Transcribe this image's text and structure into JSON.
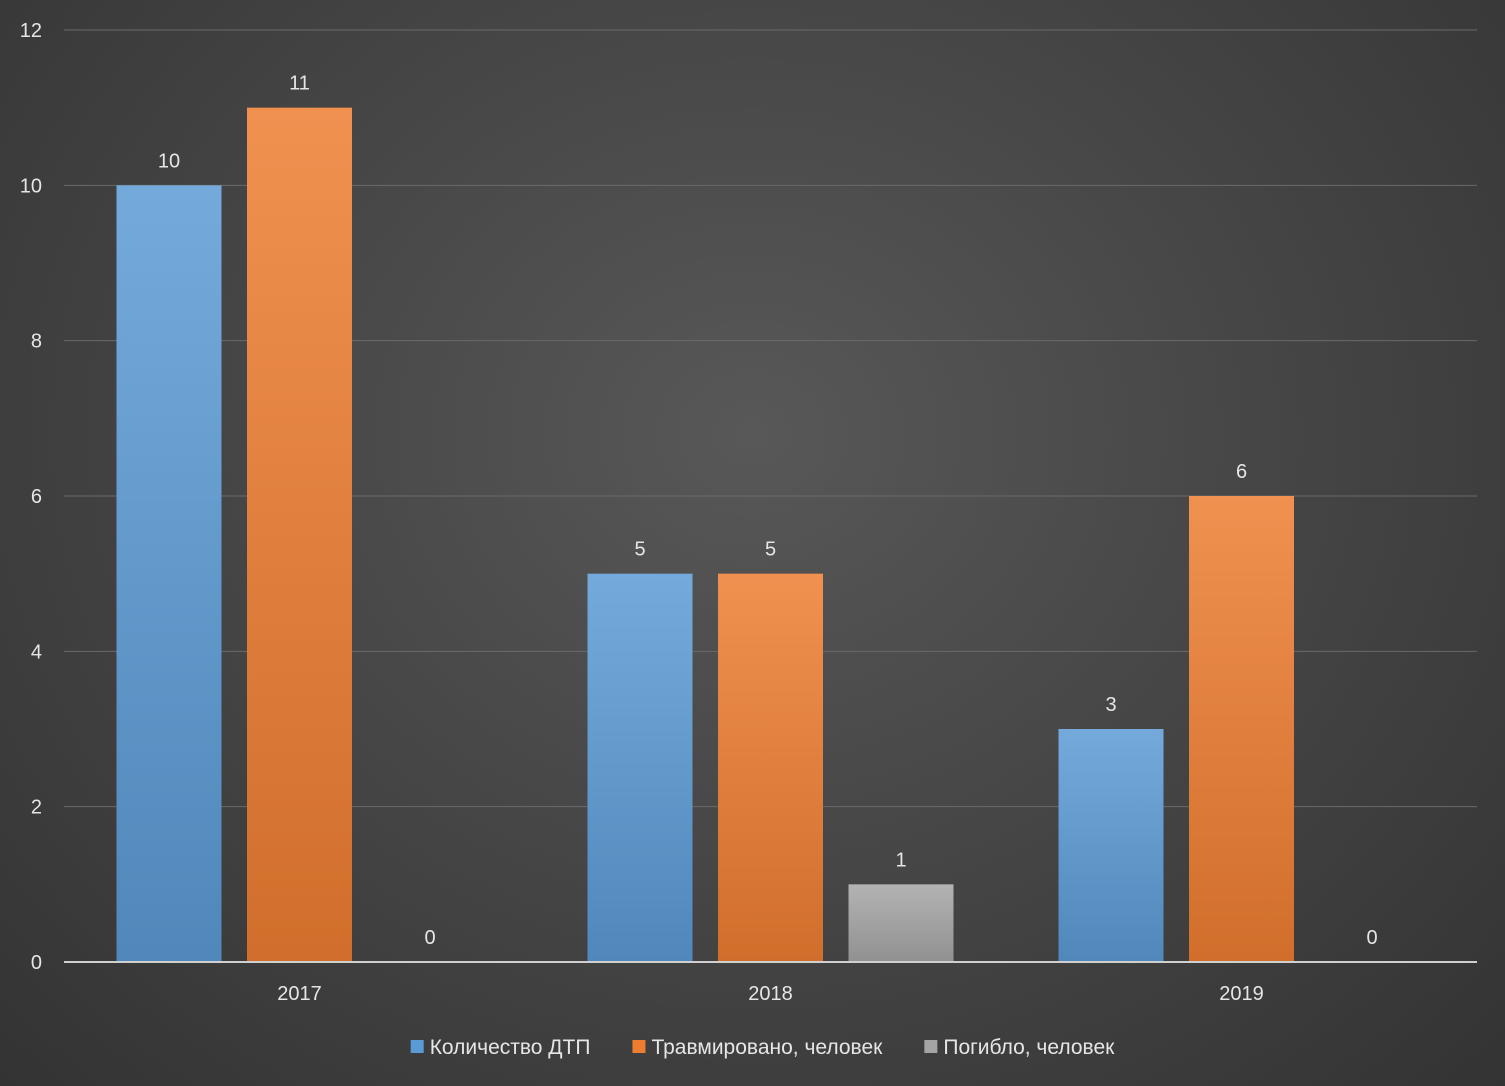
{
  "chart_data": {
    "type": "bar",
    "title": "",
    "xlabel": "",
    "ylabel": "",
    "categories": [
      "2017",
      "2018",
      "2019"
    ],
    "series": [
      {
        "name": "Количество ДТП",
        "values": [
          10,
          5,
          3
        ],
        "color": "#5b9bd5"
      },
      {
        "name": "Травмировано, человек",
        "values": [
          11,
          5,
          6
        ],
        "color": "#ed7d31"
      },
      {
        "name": "Погибло, человек",
        "values": [
          0,
          1,
          0
        ],
        "color": "#a5a5a5"
      }
    ],
    "ylim": [
      0,
      12
    ],
    "yticks": [
      0,
      2,
      4,
      6,
      8,
      10,
      12
    ],
    "grid": true,
    "legend_position": "bottom"
  }
}
